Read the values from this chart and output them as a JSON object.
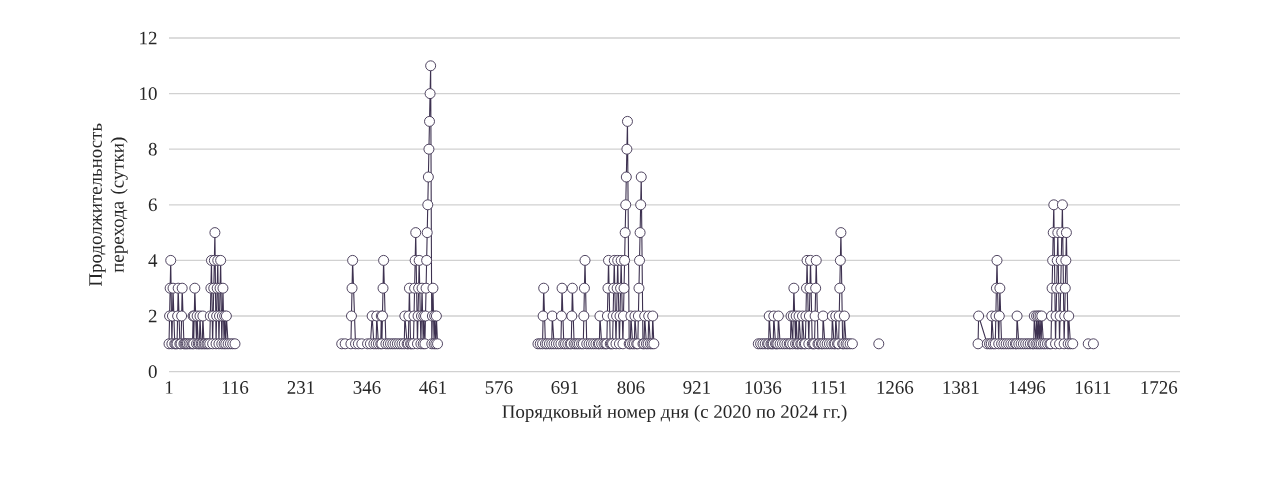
{
  "chart_data": {
    "type": "line",
    "xlabel": "Порядковый номер дня (с 2020 по 2024 гг.)",
    "ylabel": "Продолжительность перехода (сутки)",
    "color": "#3d3150",
    "marker": "circle",
    "grid": "y",
    "xlim": [
      1,
      1763
    ],
    "ylim": [
      0,
      12
    ],
    "xticks": [
      1,
      116,
      231,
      346,
      461,
      576,
      691,
      806,
      921,
      1036,
      1151,
      1266,
      1381,
      1496,
      1611,
      1726
    ],
    "yticks": [
      0,
      2,
      4,
      6,
      8,
      10,
      12
    ],
    "x": [
      1,
      2,
      3,
      4,
      6,
      7,
      8,
      11,
      13,
      15,
      16,
      17,
      20,
      22,
      23,
      24,
      27,
      29,
      31,
      33,
      36,
      39,
      42,
      43,
      44,
      45,
      46,
      49,
      50,
      52,
      54,
      55,
      57,
      59,
      60,
      62,
      64,
      67,
      69,
      72,
      73,
      74,
      75,
      77,
      78,
      79,
      80,
      81,
      83,
      84,
      85,
      86,
      88,
      89,
      90,
      91,
      93,
      94,
      95,
      97,
      98,
      100,
      101,
      104,
      108,
      112,
      116,
      200,
      302,
      308,
      318,
      319,
      320,
      321,
      326,
      331,
      337,
      347,
      352,
      355,
      358,
      362,
      363,
      366,
      370,
      371,
      372,
      373,
      374,
      375,
      379,
      383,
      387,
      391,
      395,
      399,
      403,
      407,
      411,
      412,
      416,
      418,
      419,
      420,
      422,
      424,
      427,
      428,
      429,
      430,
      431,
      434,
      435,
      436,
      437,
      440,
      441,
      442,
      444,
      445,
      447,
      448,
      449,
      450,
      451,
      452,
      453,
      454,
      455,
      456,
      457,
      459,
      460,
      461,
      463,
      464,
      466,
      467,
      469,
      550,
      644,
      648,
      652,
      653,
      654,
      657,
      660,
      664,
      668,
      669,
      672,
      676,
      680,
      684,
      685,
      686,
      689,
      692,
      696,
      700,
      702,
      703,
      704,
      707,
      710,
      713,
      716,
      720,
      723,
      724,
      725,
      726,
      729,
      733,
      737,
      741,
      745,
      749,
      751,
      752,
      755,
      759,
      762,
      764,
      765,
      766,
      767,
      770,
      772,
      774,
      775,
      776,
      777,
      780,
      781,
      782,
      783,
      786,
      787,
      788,
      789,
      792,
      793,
      794,
      795,
      796,
      797,
      798,
      799,
      800,
      803,
      805,
      806,
      809,
      812,
      813,
      816,
      818,
      819,
      820,
      821,
      822,
      823,
      824,
      827,
      829,
      830,
      833,
      836,
      837,
      840,
      843,
      844,
      846,
      950,
      1028,
      1032,
      1036,
      1040,
      1044,
      1046,
      1047,
      1050,
      1052,
      1054,
      1055,
      1058,
      1060,
      1062,
      1063,
      1066,
      1070,
      1074,
      1078,
      1082,
      1084,
      1085,
      1088,
      1089,
      1090,
      1093,
      1094,
      1096,
      1098,
      1099,
      1102,
      1104,
      1105,
      1108,
      1110,
      1111,
      1112,
      1113,
      1116,
      1117,
      1118,
      1119,
      1122,
      1124,
      1126,
      1127,
      1128,
      1129,
      1132,
      1134,
      1138,
      1140,
      1141,
      1144,
      1148,
      1152,
      1156,
      1157,
      1160,
      1162,
      1163,
      1166,
      1168,
      1169,
      1170,
      1171,
      1172,
      1175,
      1177,
      1178,
      1181,
      1184,
      1188,
      1192,
      1215,
      1238,
      1300,
      1411,
      1412,
      1427,
      1431,
      1434,
      1435,
      1438,
      1441,
      1442,
      1443,
      1444,
      1447,
      1448,
      1449,
      1452,
      1456,
      1460,
      1464,
      1468,
      1472,
      1476,
      1478,
      1479,
      1482,
      1486,
      1490,
      1494,
      1498,
      1502,
      1506,
      1508,
      1509,
      1512,
      1513,
      1515,
      1516,
      1518,
      1519,
      1521,
      1522,
      1525,
      1528,
      1532,
      1536,
      1538,
      1539,
      1540,
      1541,
      1542,
      1543,
      1546,
      1547,
      1548,
      1549,
      1550,
      1553,
      1554,
      1555,
      1556,
      1557,
      1558,
      1561,
      1562,
      1563,
      1564,
      1565,
      1568,
      1569,
      1572,
      1576,
      1590,
      1603,
      1612
    ],
    "values": [
      1,
      2,
      3,
      4,
      1,
      2,
      3,
      1,
      1,
      1,
      2,
      3,
      1,
      1,
      2,
      3,
      1,
      1,
      1,
      1,
      1,
      1,
      1,
      2,
      1,
      2,
      3,
      1,
      2,
      1,
      1,
      2,
      1,
      1,
      2,
      1,
      1,
      1,
      1,
      1,
      2,
      3,
      4,
      1,
      2,
      3,
      4,
      5,
      1,
      2,
      3,
      4,
      1,
      2,
      3,
      4,
      1,
      2,
      3,
      1,
      2,
      1,
      2,
      1,
      1,
      1,
      1,
      null,
      1,
      1,
      1,
      2,
      3,
      4,
      1,
      1,
      1,
      1,
      1,
      2,
      1,
      1,
      2,
      1,
      1,
      2,
      1,
      2,
      3,
      4,
      1,
      1,
      1,
      1,
      1,
      1,
      1,
      1,
      1,
      2,
      1,
      1,
      2,
      3,
      1,
      1,
      1,
      2,
      3,
      4,
      5,
      1,
      2,
      3,
      4,
      1,
      2,
      3,
      1,
      2,
      1,
      2,
      3,
      4,
      5,
      6,
      7,
      8,
      9,
      10,
      11,
      1,
      2,
      3,
      1,
      2,
      1,
      2,
      1,
      null,
      1,
      1,
      1,
      2,
      3,
      1,
      1,
      1,
      1,
      2,
      1,
      1,
      1,
      1,
      2,
      3,
      1,
      1,
      1,
      1,
      1,
      2,
      3,
      1,
      1,
      1,
      1,
      1,
      1,
      2,
      3,
      4,
      1,
      1,
      1,
      1,
      1,
      1,
      1,
      2,
      1,
      1,
      1,
      1,
      2,
      3,
      4,
      1,
      1,
      1,
      2,
      3,
      4,
      1,
      2,
      3,
      4,
      1,
      2,
      3,
      4,
      1,
      2,
      3,
      4,
      5,
      6,
      7,
      8,
      9,
      1,
      1,
      2,
      1,
      1,
      2,
      1,
      1,
      2,
      3,
      4,
      5,
      6,
      7,
      1,
      1,
      2,
      1,
      1,
      2,
      1,
      1,
      2,
      1,
      null,
      1,
      1,
      1,
      1,
      1,
      1,
      2,
      1,
      1,
      1,
      2,
      1,
      1,
      1,
      2,
      1,
      1,
      1,
      1,
      1,
      1,
      2,
      1,
      2,
      3,
      1,
      2,
      1,
      1,
      2,
      1,
      1,
      2,
      1,
      1,
      2,
      3,
      4,
      1,
      2,
      3,
      4,
      1,
      1,
      1,
      2,
      3,
      4,
      1,
      1,
      1,
      1,
      2,
      1,
      1,
      1,
      1,
      2,
      1,
      1,
      2,
      1,
      1,
      2,
      3,
      4,
      5,
      1,
      1,
      2,
      1,
      1,
      1,
      1,
      null,
      1,
      null,
      1,
      2,
      1,
      1,
      1,
      2,
      1,
      1,
      2,
      3,
      4,
      1,
      2,
      3,
      1,
      1,
      1,
      1,
      1,
      1,
      1,
      1,
      2,
      1,
      1,
      1,
      1,
      1,
      1,
      1,
      1,
      2,
      1,
      2,
      1,
      2,
      1,
      2,
      1,
      2,
      1,
      1,
      1,
      1,
      1,
      2,
      3,
      4,
      5,
      6,
      1,
      2,
      3,
      4,
      5,
      1,
      2,
      3,
      4,
      5,
      6,
      1,
      2,
      3,
      4,
      5,
      1,
      2,
      1,
      1,
      null,
      1,
      1
    ]
  }
}
